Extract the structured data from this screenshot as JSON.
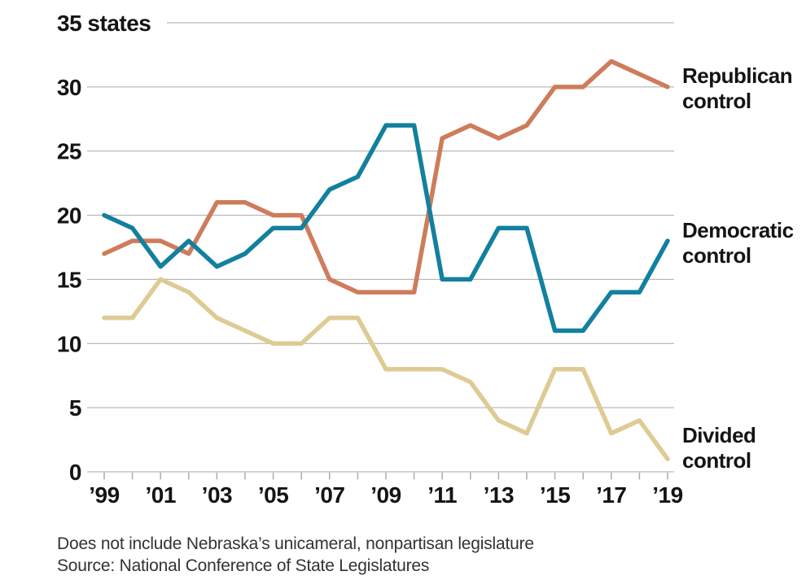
{
  "chart_data": {
    "type": "line",
    "x": [
      1999,
      2000,
      2001,
      2002,
      2003,
      2004,
      2005,
      2006,
      2007,
      2008,
      2009,
      2010,
      2011,
      2012,
      2013,
      2014,
      2015,
      2016,
      2017,
      2018,
      2019
    ],
    "x_tick_labels": [
      {
        "year": 1999,
        "label": "’99"
      },
      {
        "year": 2001,
        "label": "’01"
      },
      {
        "year": 2003,
        "label": "’03"
      },
      {
        "year": 2005,
        "label": "’05"
      },
      {
        "year": 2007,
        "label": "’07"
      },
      {
        "year": 2009,
        "label": "’09"
      },
      {
        "year": 2011,
        "label": "’11"
      },
      {
        "year": 2013,
        "label": "’13"
      },
      {
        "year": 2015,
        "label": "’15"
      },
      {
        "year": 2017,
        "label": "’17"
      },
      {
        "year": 2019,
        "label": "’19"
      }
    ],
    "yticks": [
      {
        "value": 0,
        "label": "0"
      },
      {
        "value": 5,
        "label": "5"
      },
      {
        "value": 10,
        "label": "10"
      },
      {
        "value": 15,
        "label": "15"
      },
      {
        "value": 20,
        "label": "20"
      },
      {
        "value": 25,
        "label": "25"
      },
      {
        "value": 30,
        "label": "30"
      },
      {
        "value": 35,
        "label": "35 states"
      }
    ],
    "ylim": [
      0,
      35
    ],
    "grid": true,
    "legend_position": "right-of-line-ends",
    "series": [
      {
        "key": "republican",
        "name": "Republican control",
        "color": "#CE7C5B",
        "values": [
          17,
          18,
          18,
          17,
          21,
          21,
          20,
          20,
          15,
          14,
          14,
          14,
          26,
          27,
          26,
          27,
          30,
          30,
          32,
          31,
          30
        ]
      },
      {
        "key": "divided",
        "name": "Divided control",
        "color": "#DECB94",
        "values": [
          12,
          12,
          15,
          14,
          12,
          11,
          10,
          10,
          12,
          12,
          8,
          8,
          8,
          7,
          4,
          3,
          8,
          8,
          3,
          4,
          1
        ]
      },
      {
        "key": "democratic",
        "name": "Democratic control",
        "color": "#12809E",
        "values": [
          20,
          19,
          16,
          18,
          16,
          17,
          19,
          19,
          22,
          23,
          27,
          27,
          15,
          15,
          19,
          19,
          11,
          11,
          14,
          14,
          18
        ]
      }
    ]
  },
  "colors": {
    "gridline": "#A9A9A9",
    "tick": "#ABABAB",
    "text": "#141414"
  },
  "footer": {
    "note": "Does not include Nebraska’s unicameral, nonpartisan legislature",
    "source": "Source: National Conference of State Legislatures"
  }
}
